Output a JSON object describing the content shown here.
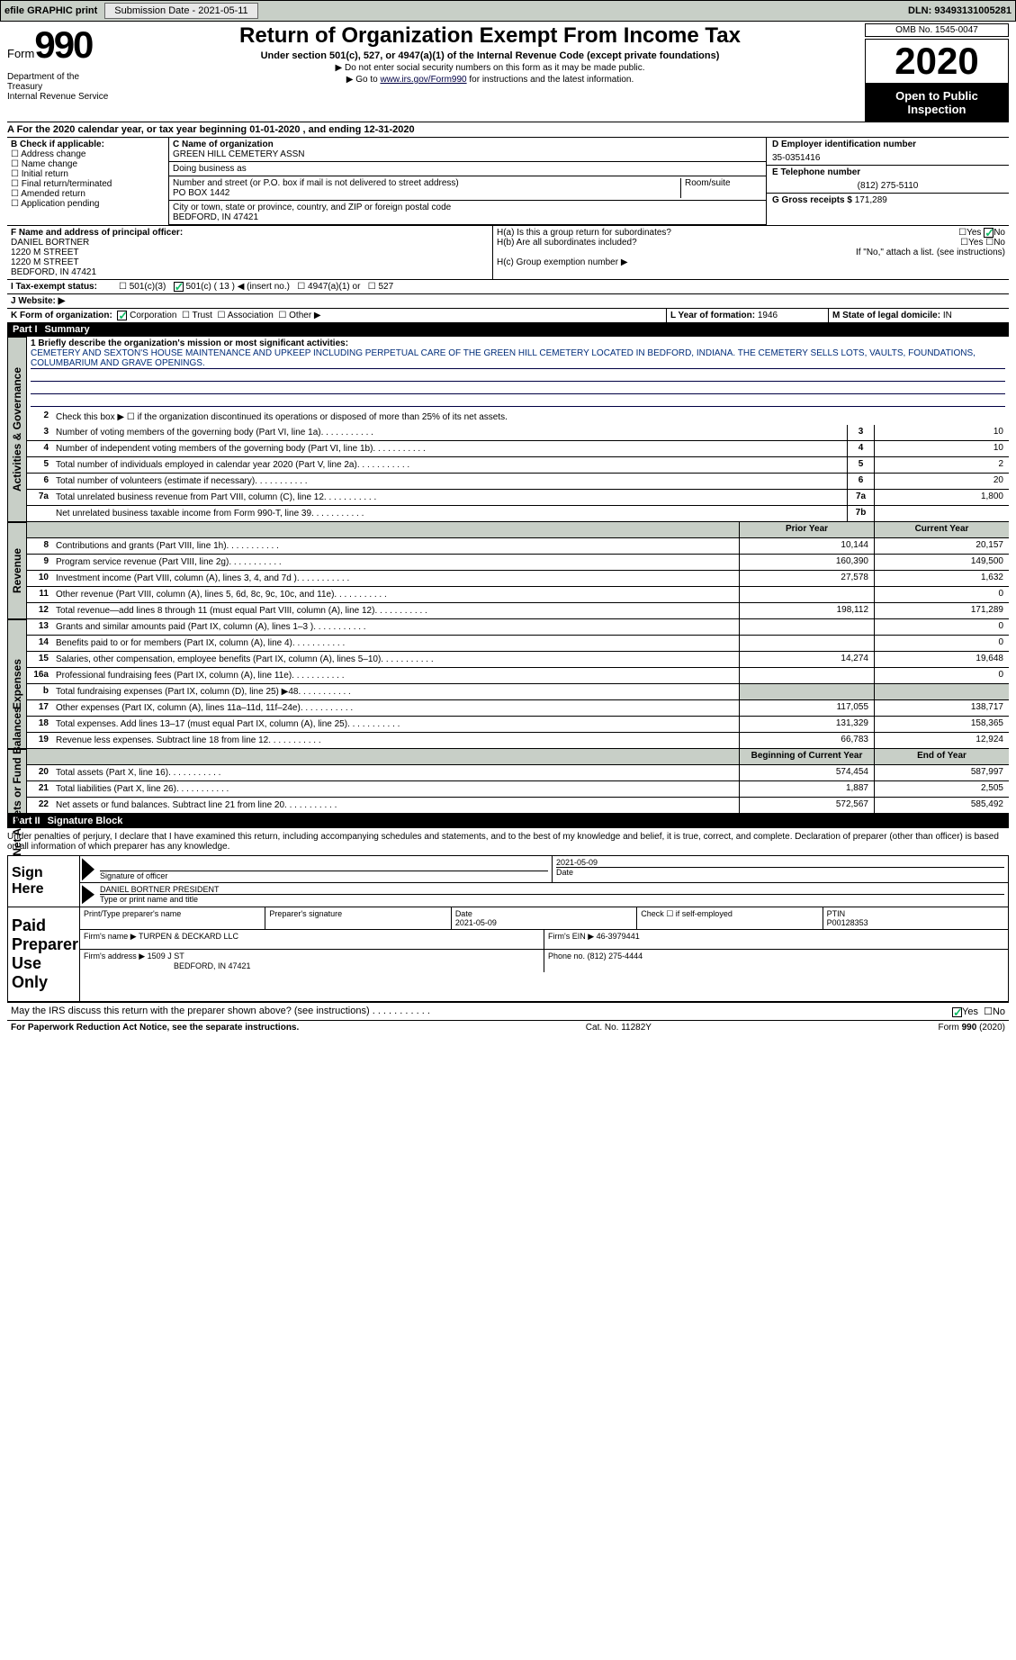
{
  "topbar": {
    "efile": "efile GRAPHIC print",
    "submission_label": "Submission Date - 2021-05-11",
    "dln_label": "DLN: 93493131005281"
  },
  "header": {
    "form_prefix": "Form",
    "form_number": "990",
    "title": "Return of Organization Exempt From Income Tax",
    "subtitle": "Under section 501(c), 527, or 4947(a)(1) of the Internal Revenue Code (except private foundations)",
    "tri1": "▶ Do not enter social security numbers on this form as it may be made public.",
    "tri2_prefix": "▶ Go to ",
    "tri2_link": "www.irs.gov/Form990",
    "tri2_suffix": " for instructions and the latest information.",
    "dept": "Department of the Treasury\nInternal Revenue Service",
    "omb": "OMB No. 1545-0047",
    "year": "2020",
    "open_public": "Open to Public Inspection"
  },
  "period": "A  For the 2020 calendar year, or tax year beginning 01-01-2020   , and ending 12-31-2020",
  "section_b": {
    "label": "B Check if applicable:",
    "opts": [
      "Address change",
      "Name change",
      "Initial return",
      "Final return/terminated",
      "Amended return",
      "Application pending"
    ]
  },
  "section_c": {
    "name_label": "C Name of organization",
    "name": "GREEN HILL CEMETERY ASSN",
    "dba_label": "Doing business as",
    "dba": "",
    "street_label": "Number and street (or P.O. box if mail is not delivered to street address)",
    "room_label": "Room/suite",
    "street": "PO BOX 1442",
    "city_label": "City or town, state or province, country, and ZIP or foreign postal code",
    "city": "BEDFORD, IN  47421"
  },
  "section_d": {
    "label": "D Employer identification number",
    "value": "35-0351416"
  },
  "section_e": {
    "label": "E Telephone number",
    "value": "(812) 275-5110"
  },
  "section_g": {
    "label": "G Gross receipts $",
    "value": "171,289"
  },
  "section_f": {
    "label": "F Name and address of principal officer:",
    "name": "DANIEL BORTNER",
    "line1": "1220 M STREET",
    "line2": "1220 M STREET",
    "line3": "BEDFORD, IN  47421"
  },
  "section_h": {
    "ha_label": "H(a)  Is this a group return for subordinates?",
    "hb_label": "H(b)  Are all subordinates included?",
    "hb_note": "If \"No,\" attach a list. (see instructions)",
    "hc_label": "H(c)  Group exemption number ▶",
    "yes": "Yes",
    "no": "No"
  },
  "section_i": {
    "label": "I  Tax-exempt status:",
    "opts": [
      "501(c)(3)",
      "501(c) ( 13 ) ◀ (insert no.)",
      "4947(a)(1) or",
      "527"
    ]
  },
  "section_j": {
    "label": "J  Website: ▶"
  },
  "section_k": {
    "label": "K Form of organization:",
    "opts": [
      "Corporation",
      "Trust",
      "Association",
      "Other ▶"
    ]
  },
  "section_l": {
    "label": "L Year of formation:",
    "value": "1946"
  },
  "section_m": {
    "label": "M State of legal domicile:",
    "value": "IN"
  },
  "part1": {
    "label": "Part I",
    "title": "Summary",
    "q1_label": "1  Briefly describe the organization's mission or most significant activities:",
    "mission": "CEMETERY AND SEXTON'S HOUSE MAINTENANCE AND UPKEEP INCLUDING PERPETUAL CARE OF THE GREEN HILL CEMETERY LOCATED IN BEDFORD, INDIANA. THE CEMETERY SELLS LOTS, VAULTS, FOUNDATIONS, COLUMBARIUM AND GRAVE OPENINGS.",
    "q2": "Check this box ▶ ☐  if the organization discontinued its operations or disposed of more than 25% of its net assets.",
    "prior_year_label": "Prior Year",
    "current_year_label": "Current Year",
    "begin_year_label": "Beginning of Current Year",
    "end_year_label": "End of Year",
    "sections": {
      "gov": "Activities & Governance",
      "rev": "Revenue",
      "exp": "Expenses",
      "net": "Net Assets or Fund Balances"
    },
    "lines_gov": [
      {
        "n": "3",
        "t": "Number of voting members of the governing body (Part VI, line 1a)",
        "box": "3",
        "v": "10"
      },
      {
        "n": "4",
        "t": "Number of independent voting members of the governing body (Part VI, line 1b)",
        "box": "4",
        "v": "10"
      },
      {
        "n": "5",
        "t": "Total number of individuals employed in calendar year 2020 (Part V, line 2a)",
        "box": "5",
        "v": "2"
      },
      {
        "n": "6",
        "t": "Total number of volunteers (estimate if necessary)",
        "box": "6",
        "v": "20"
      },
      {
        "n": "7a",
        "t": "Total unrelated business revenue from Part VIII, column (C), line 12",
        "box": "7a",
        "v": "1,800"
      },
      {
        "n": "",
        "t": "Net unrelated business taxable income from Form 990-T, line 39",
        "box": "7b",
        "v": ""
      }
    ],
    "lines_rev": [
      {
        "n": "8",
        "t": "Contributions and grants (Part VIII, line 1h)",
        "p": "10,144",
        "c": "20,157"
      },
      {
        "n": "9",
        "t": "Program service revenue (Part VIII, line 2g)",
        "p": "160,390",
        "c": "149,500"
      },
      {
        "n": "10",
        "t": "Investment income (Part VIII, column (A), lines 3, 4, and 7d )",
        "p": "27,578",
        "c": "1,632"
      },
      {
        "n": "11",
        "t": "Other revenue (Part VIII, column (A), lines 5, 6d, 8c, 9c, 10c, and 11e)",
        "p": "",
        "c": "0"
      },
      {
        "n": "12",
        "t": "Total revenue—add lines 8 through 11 (must equal Part VIII, column (A), line 12)",
        "p": "198,112",
        "c": "171,289"
      }
    ],
    "lines_exp": [
      {
        "n": "13",
        "t": "Grants and similar amounts paid (Part IX, column (A), lines 1–3 )",
        "p": "",
        "c": "0"
      },
      {
        "n": "14",
        "t": "Benefits paid to or for members (Part IX, column (A), line 4)",
        "p": "",
        "c": "0"
      },
      {
        "n": "15",
        "t": "Salaries, other compensation, employee benefits (Part IX, column (A), lines 5–10)",
        "p": "14,274",
        "c": "19,648"
      },
      {
        "n": "16a",
        "t": "Professional fundraising fees (Part IX, column (A), line 11e)",
        "p": "",
        "c": "0"
      },
      {
        "n": "b",
        "t": "Total fundraising expenses (Part IX, column (D), line 25) ▶48",
        "p": "gray",
        "c": "gray"
      },
      {
        "n": "17",
        "t": "Other expenses (Part IX, column (A), lines 11a–11d, 11f–24e)",
        "p": "117,055",
        "c": "138,717"
      },
      {
        "n": "18",
        "t": "Total expenses. Add lines 13–17 (must equal Part IX, column (A), line 25)",
        "p": "131,329",
        "c": "158,365"
      },
      {
        "n": "19",
        "t": "Revenue less expenses. Subtract line 18 from line 12",
        "p": "66,783",
        "c": "12,924"
      }
    ],
    "lines_net": [
      {
        "n": "20",
        "t": "Total assets (Part X, line 16)",
        "p": "574,454",
        "c": "587,997"
      },
      {
        "n": "21",
        "t": "Total liabilities (Part X, line 26)",
        "p": "1,887",
        "c": "2,505"
      },
      {
        "n": "22",
        "t": "Net assets or fund balances. Subtract line 21 from line 20",
        "p": "572,567",
        "c": "585,492"
      }
    ]
  },
  "part2": {
    "label": "Part II",
    "title": "Signature Block",
    "penalties": "Under penalties of perjury, I declare that I have examined this return, including accompanying schedules and statements, and to the best of my knowledge and belief, it is true, correct, and complete. Declaration of preparer (other than officer) is based on all information of which preparer has any knowledge.",
    "sign_here": "Sign Here",
    "sig_officer": "Signature of officer",
    "sig_date": "2021-05-09",
    "date_label": "Date",
    "officer_name": "DANIEL BORTNER  PRESIDENT",
    "type_name": "Type or print name and title",
    "paid_label": "Paid Preparer Use Only",
    "print_name_label": "Print/Type preparer's name",
    "prep_sig_label": "Preparer's signature",
    "prep_date_label": "Date",
    "prep_date": "2021-05-09",
    "check_if": "Check ☐ if self-employed",
    "ptin_label": "PTIN",
    "ptin": "P00128353",
    "firm_name_label": "Firm's name    ▶",
    "firm_name": "TURPEN & DECKARD LLC",
    "firm_ein_label": "Firm's EIN ▶",
    "firm_ein": "46-3979441",
    "firm_addr_label": "Firm's address ▶",
    "firm_addr": "1509 J ST",
    "firm_city": "BEDFORD, IN  47421",
    "phone_label": "Phone no.",
    "phone": "(812) 275-4444",
    "may_irs": "May the IRS discuss this return with the preparer shown above? (see instructions)",
    "yes": "Yes",
    "no": "No"
  },
  "footer": {
    "paperwork": "For Paperwork Reduction Act Notice, see the separate instructions.",
    "cat": "Cat. No. 11282Y",
    "formpage": "Form 990 (2020)"
  }
}
